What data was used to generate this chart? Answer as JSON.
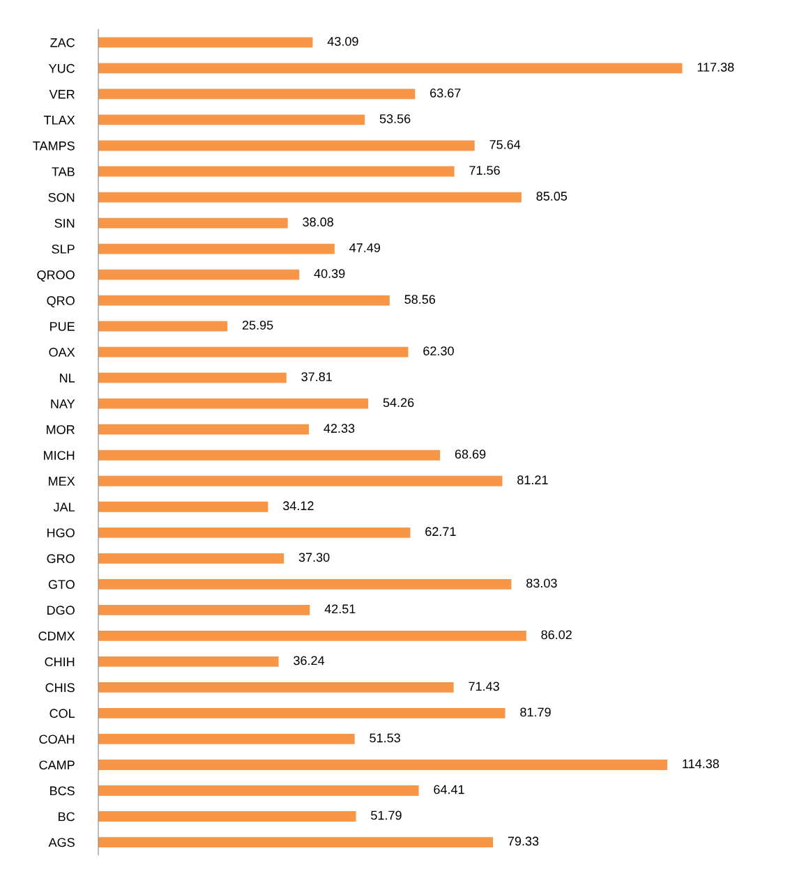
{
  "chart_data": {
    "type": "bar",
    "orientation": "horizontal",
    "categories": [
      "ZAC",
      "YUC",
      "VER",
      "TLAX",
      "TAMPS",
      "TAB",
      "SON",
      "SIN",
      "SLP",
      "QROO",
      "QRO",
      "PUE",
      "OAX",
      "NL",
      "NAY",
      "MOR",
      "MICH",
      "MEX",
      "JAL",
      "HGO",
      "GRO",
      "GTO",
      "DGO",
      "CDMX",
      "CHIH",
      "CHIS",
      "COL",
      "COAH",
      "CAMP",
      "BCS",
      "BC",
      "AGS"
    ],
    "values": [
      43.09,
      117.38,
      63.67,
      53.56,
      75.64,
      71.56,
      85.05,
      38.08,
      47.49,
      40.39,
      58.56,
      25.95,
      62.3,
      37.81,
      54.26,
      42.33,
      68.69,
      81.21,
      34.12,
      62.71,
      37.3,
      83.03,
      42.51,
      86.02,
      36.24,
      71.43,
      81.79,
      51.53,
      114.38,
      64.41,
      51.79,
      79.33
    ],
    "value_labels": [
      "43.09",
      "117.38",
      "63.67",
      "53.56",
      "75.64",
      "71.56",
      "85.05",
      "38.08",
      "47.49",
      "40.39",
      "58.56",
      "25.95",
      "62.30",
      "37.81",
      "54.26",
      "42.33",
      "68.69",
      "81.21",
      "34.12",
      "62.71",
      "37.30",
      "83.03",
      "42.51",
      "86.02",
      "36.24",
      "71.43",
      "81.79",
      "51.53",
      "114.38",
      "64.41",
      "51.79",
      "79.33"
    ],
    "color": "#f79646",
    "tick_labels": "y",
    "grid": false,
    "legend": false
  }
}
